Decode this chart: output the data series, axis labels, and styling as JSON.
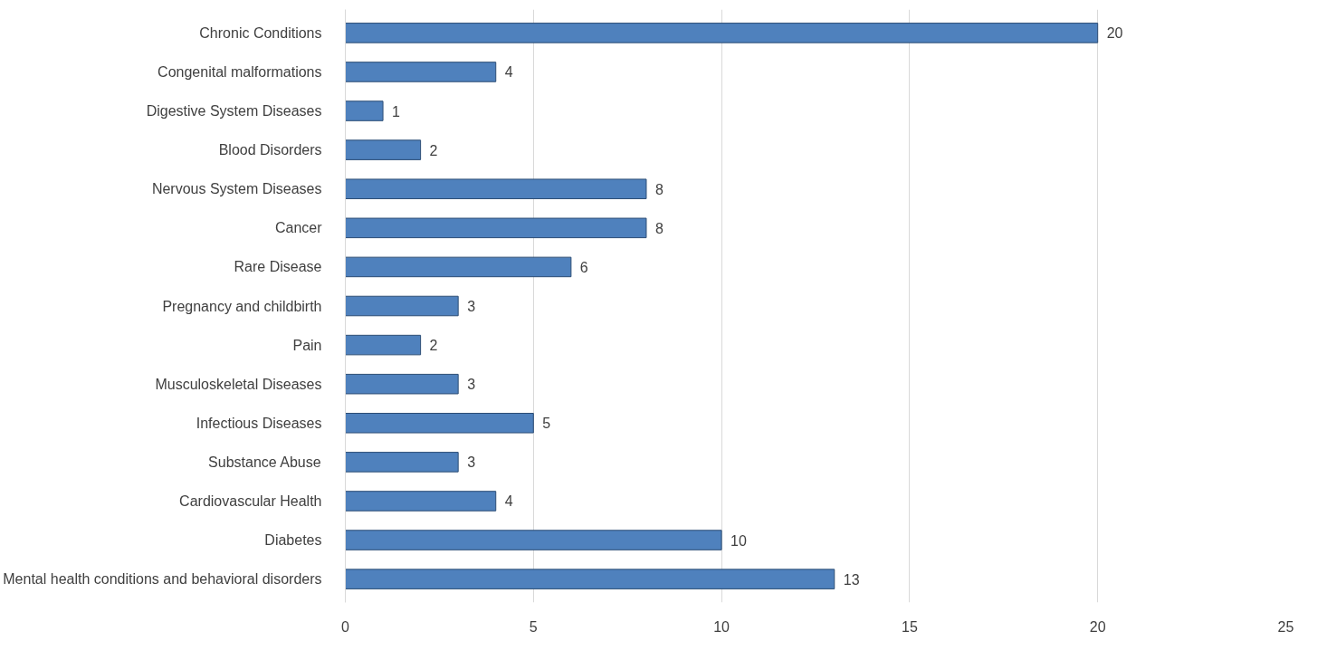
{
  "chart_data": {
    "type": "bar",
    "orientation": "horizontal",
    "categories": [
      "Chronic Conditions",
      "Congenital malformations",
      "Digestive System Diseases",
      "Blood Disorders",
      "Nervous System Diseases",
      "Cancer",
      "Rare Disease",
      "Pregnancy and childbirth",
      "Pain",
      "Musculoskeletal Diseases",
      "Infectious Diseases",
      "Substance Abuse",
      "Cardiovascular Health",
      "Diabetes",
      "Mental health conditions and behavioral disorders"
    ],
    "values": [
      20,
      4,
      1,
      2,
      8,
      8,
      6,
      3,
      2,
      3,
      5,
      3,
      4,
      10,
      13
    ],
    "color": "#4f81bd",
    "xlim": [
      0,
      25
    ],
    "xticks": [
      0,
      5,
      10,
      15,
      20,
      25
    ],
    "grid": "x",
    "data_labels": true
  }
}
